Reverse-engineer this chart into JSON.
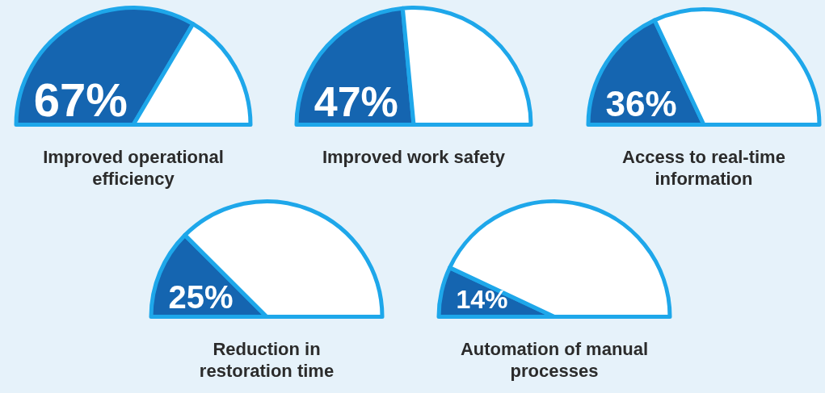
{
  "chart_data": [
    {
      "type": "pie",
      "title": "Improved operational efficiency",
      "categories": [
        null,
        null
      ],
      "values": [
        67,
        33
      ],
      "colors": [
        "#1565b0",
        "#ffffff"
      ],
      "value_labels": [
        "67%",
        null
      ]
    },
    {
      "type": "pie",
      "title": "Improved work safety",
      "categories": [
        null,
        null
      ],
      "values": [
        47,
        53
      ],
      "colors": [
        "#1565b0",
        "#ffffff"
      ],
      "value_labels": [
        "47%",
        null
      ]
    },
    {
      "type": "pie",
      "title": "Access to real-time information",
      "categories": [
        null,
        null
      ],
      "values": [
        36,
        64
      ],
      "colors": [
        "#1565b0",
        "#ffffff"
      ],
      "value_labels": [
        "36%",
        null
      ]
    },
    {
      "type": "pie",
      "title": "Reduction in restoration time",
      "categories": [
        null,
        null
      ],
      "values": [
        25,
        75
      ],
      "colors": [
        "#1565b0",
        "#ffffff"
      ],
      "value_labels": [
        "25%",
        null
      ]
    },
    {
      "type": "pie",
      "title": "Automation of manual processes",
      "categories": [
        null,
        null
      ],
      "values": [
        14,
        86
      ],
      "colors": [
        "#1565b0",
        "#ffffff"
      ],
      "value_labels": [
        "14%",
        null
      ]
    }
  ]
}
